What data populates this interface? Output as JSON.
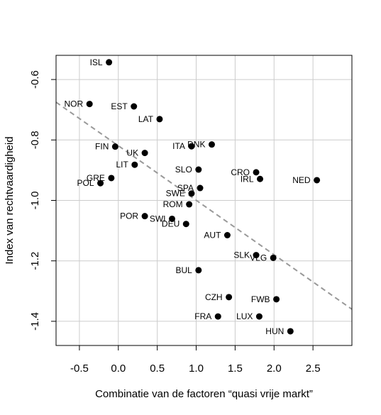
{
  "chart_data": {
    "type": "scatter",
    "xlabel": "Combinatie van de factoren “quasi vrije markt”",
    "ylabel": "Index van rechtvaardigheid",
    "xlim": [
      -0.8,
      3.0
    ],
    "ylim": [
      -1.48,
      -0.52
    ],
    "xticks": [
      -0.5,
      0.0,
      0.5,
      1.0,
      1.5,
      2.0,
      2.5
    ],
    "xtick_labels": [
      "-0.5",
      "0.0",
      "0.5",
      "1.0",
      "1.5",
      "2.0",
      "2.5"
    ],
    "yticks": [
      -1.4,
      -1.2,
      -1.0,
      -0.8,
      -0.6
    ],
    "ytick_labels": [
      "-1.4",
      "-1.2",
      "-1.0",
      "-0.8",
      "-0.6"
    ],
    "grid": true,
    "trendline": {
      "style": "dashed",
      "color": "#999999",
      "x": [
        -0.8,
        3.0
      ],
      "y": [
        -0.675,
        -1.36
      ]
    },
    "points": [
      {
        "label": "ISL",
        "x": -0.12,
        "y": -0.543
      },
      {
        "label": "NOR",
        "x": -0.37,
        "y": -0.681
      },
      {
        "label": "EST",
        "x": 0.2,
        "y": -0.689
      },
      {
        "label": "LAT",
        "x": 0.53,
        "y": -0.731
      },
      {
        "label": "FIN",
        "x": -0.04,
        "y": -0.822
      },
      {
        "label": "UK",
        "x": 0.34,
        "y": -0.843
      },
      {
        "label": "ITA",
        "x": 0.94,
        "y": -0.821
      },
      {
        "label": "DNK",
        "x": 1.2,
        "y": -0.815
      },
      {
        "label": "LIT",
        "x": 0.21,
        "y": -0.882
      },
      {
        "label": "SLO",
        "x": 1.03,
        "y": -0.898
      },
      {
        "label": "CRO",
        "x": 1.77,
        "y": -0.907
      },
      {
        "label": "IRL",
        "x": 1.82,
        "y": -0.929
      },
      {
        "label": "NED",
        "x": 2.55,
        "y": -0.933
      },
      {
        "label": "GRE",
        "x": -0.09,
        "y": -0.926
      },
      {
        "label": "POL",
        "x": -0.23,
        "y": -0.943
      },
      {
        "label": "SPA",
        "x": 1.05,
        "y": -0.959
      },
      {
        "label": "SWE",
        "x": 0.94,
        "y": -0.977
      },
      {
        "label": "ROM",
        "x": 0.91,
        "y": -1.013
      },
      {
        "label": "POR",
        "x": 0.34,
        "y": -1.052
      },
      {
        "label": "SWI",
        "x": 0.69,
        "y": -1.061
      },
      {
        "label": "DEU",
        "x": 0.87,
        "y": -1.078
      },
      {
        "label": "AUT",
        "x": 1.4,
        "y": -1.115
      },
      {
        "label": "SLK",
        "x": 1.77,
        "y": -1.181
      },
      {
        "label": "VLG",
        "x": 1.99,
        "y": -1.19
      },
      {
        "label": "BUL",
        "x": 1.03,
        "y": -1.231
      },
      {
        "label": "CZH",
        "x": 1.42,
        "y": -1.32
      },
      {
        "label": "FWB",
        "x": 2.03,
        "y": -1.327
      },
      {
        "label": "FRA",
        "x": 1.28,
        "y": -1.384
      },
      {
        "label": "LUX",
        "x": 1.81,
        "y": -1.384
      },
      {
        "label": "HUN",
        "x": 2.21,
        "y": -1.433
      }
    ],
    "point_color": "#000000",
    "grid_color": "#cccccc"
  }
}
